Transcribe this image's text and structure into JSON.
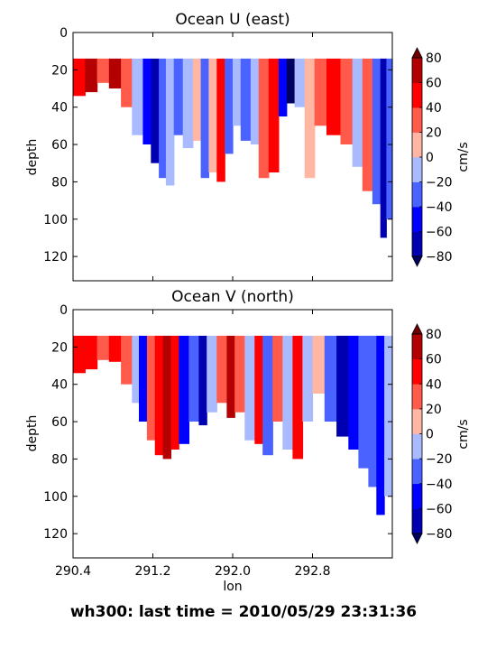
{
  "figure": {
    "suptitle": "wh300: last time = 2010/05/29 23:31:36"
  },
  "colors": {
    "levels": [
      -80,
      -60,
      -40,
      -20,
      0,
      20,
      40,
      60,
      80
    ],
    "band_colors": [
      "#0000b0",
      "#0000ff",
      "#4a62ff",
      "#a9baff",
      "#ffb6a3",
      "#ff5a4a",
      "#ff0000",
      "#b30000"
    ],
    "under": "#000060",
    "over": "#700000"
  },
  "chart_data": [
    {
      "type": "heatmap",
      "title": "Ocean U (east)",
      "xlabel": "",
      "ylabel": "depth",
      "colorbar_label": "cm/s",
      "colorbar_ticks": [
        "80",
        "60",
        "40",
        "20",
        "0",
        "−20",
        "−40",
        "−60",
        "−80"
      ],
      "xlim": [
        290.4,
        293.6
      ],
      "ylim": [
        133,
        0
      ],
      "yticks": [
        "0",
        "20",
        "40",
        "60",
        "80",
        "100",
        "120"
      ],
      "xticks": [],
      "depth_top": 14,
      "columns": [
        {
          "x0": 290.4,
          "x1": 290.52,
          "v": 40,
          "bottom": 34
        },
        {
          "x0": 290.52,
          "x1": 290.64,
          "v": 70,
          "bottom": 32
        },
        {
          "x0": 290.64,
          "x1": 290.76,
          "v": 35,
          "bottom": 27
        },
        {
          "x0": 290.76,
          "x1": 290.88,
          "v": 75,
          "bottom": 30
        },
        {
          "x0": 290.88,
          "x1": 290.99,
          "v": 30,
          "bottom": 40
        },
        {
          "x0": 290.99,
          "x1": 291.1,
          "v": -15,
          "bottom": 55
        },
        {
          "x0": 291.1,
          "x1": 291.18,
          "v": -50,
          "bottom": 60
        },
        {
          "x0": 291.18,
          "x1": 291.26,
          "v": -75,
          "bottom": 70
        },
        {
          "x0": 291.26,
          "x1": 291.33,
          "v": -35,
          "bottom": 78
        },
        {
          "x0": 291.33,
          "x1": 291.41,
          "v": -10,
          "bottom": 82
        },
        {
          "x0": 291.41,
          "x1": 291.5,
          "v": -25,
          "bottom": 55
        },
        {
          "x0": 291.5,
          "x1": 291.6,
          "v": -12,
          "bottom": 62
        },
        {
          "x0": 291.6,
          "x1": 291.68,
          "v": 15,
          "bottom": 58
        },
        {
          "x0": 291.68,
          "x1": 291.76,
          "v": -25,
          "bottom": 78
        },
        {
          "x0": 291.76,
          "x1": 291.84,
          "v": 12,
          "bottom": 75
        },
        {
          "x0": 291.84,
          "x1": 291.92,
          "v": 45,
          "bottom": 80
        },
        {
          "x0": 291.92,
          "x1": 292.0,
          "v": -30,
          "bottom": 65
        },
        {
          "x0": 292.0,
          "x1": 292.08,
          "v": -15,
          "bottom": 50
        },
        {
          "x0": 292.08,
          "x1": 292.18,
          "v": -40,
          "bottom": 58
        },
        {
          "x0": 292.18,
          "x1": 292.26,
          "v": -10,
          "bottom": 60
        },
        {
          "x0": 292.26,
          "x1": 292.36,
          "v": 25,
          "bottom": 78
        },
        {
          "x0": 292.36,
          "x1": 292.46,
          "v": 40,
          "bottom": 75
        },
        {
          "x0": 292.46,
          "x1": 292.54,
          "v": -55,
          "bottom": 45
        },
        {
          "x0": 292.54,
          "x1": 292.62,
          "v": -85,
          "bottom": 38
        },
        {
          "x0": 292.62,
          "x1": 292.72,
          "v": -20,
          "bottom": 40
        },
        {
          "x0": 292.72,
          "x1": 292.82,
          "v": 15,
          "bottom": 78
        },
        {
          "x0": 292.82,
          "x1": 292.94,
          "v": 25,
          "bottom": 50
        },
        {
          "x0": 292.94,
          "x1": 293.08,
          "v": 55,
          "bottom": 55
        },
        {
          "x0": 293.08,
          "x1": 293.2,
          "v": 30,
          "bottom": 60
        },
        {
          "x0": 293.2,
          "x1": 293.3,
          "v": -20,
          "bottom": 72
        },
        {
          "x0": 293.3,
          "x1": 293.4,
          "v": 25,
          "bottom": 85
        },
        {
          "x0": 293.4,
          "x1": 293.48,
          "v": -40,
          "bottom": 92
        },
        {
          "x0": 293.48,
          "x1": 293.54,
          "v": -70,
          "bottom": 110
        },
        {
          "x0": 293.54,
          "x1": 293.6,
          "v": -30,
          "bottom": 100
        }
      ]
    },
    {
      "type": "heatmap",
      "title": "Ocean V (north)",
      "xlabel": "lon",
      "ylabel": "depth",
      "colorbar_label": "cm/s",
      "colorbar_ticks": [
        "80",
        "60",
        "40",
        "20",
        "0",
        "−20",
        "−40",
        "−60",
        "−80"
      ],
      "xlim": [
        290.4,
        293.6
      ],
      "ylim": [
        133,
        0
      ],
      "yticks": [
        "0",
        "20",
        "40",
        "60",
        "80",
        "100",
        "120"
      ],
      "xticks": [
        "290.4",
        "291.2",
        "292.0",
        "292.8"
      ],
      "xtick_values": [
        290.4,
        291.2,
        292.0,
        292.8
      ],
      "depth_top": 14,
      "columns": [
        {
          "x0": 290.4,
          "x1": 290.52,
          "v": 55,
          "bottom": 34
        },
        {
          "x0": 290.52,
          "x1": 290.64,
          "v": 40,
          "bottom": 32
        },
        {
          "x0": 290.64,
          "x1": 290.76,
          "v": 35,
          "bottom": 27
        },
        {
          "x0": 290.76,
          "x1": 290.88,
          "v": 50,
          "bottom": 28
        },
        {
          "x0": 290.88,
          "x1": 290.99,
          "v": 25,
          "bottom": 40
        },
        {
          "x0": 290.99,
          "x1": 291.06,
          "v": -15,
          "bottom": 50
        },
        {
          "x0": 291.06,
          "x1": 291.14,
          "v": -60,
          "bottom": 60
        },
        {
          "x0": 291.14,
          "x1": 291.22,
          "v": 35,
          "bottom": 70
        },
        {
          "x0": 291.22,
          "x1": 291.3,
          "v": 55,
          "bottom": 78
        },
        {
          "x0": 291.3,
          "x1": 291.38,
          "v": 70,
          "bottom": 80
        },
        {
          "x0": 291.38,
          "x1": 291.46,
          "v": 45,
          "bottom": 75
        },
        {
          "x0": 291.46,
          "x1": 291.56,
          "v": -45,
          "bottom": 72
        },
        {
          "x0": 291.56,
          "x1": 291.66,
          "v": -30,
          "bottom": 60
        },
        {
          "x0": 291.66,
          "x1": 291.74,
          "v": -70,
          "bottom": 62
        },
        {
          "x0": 291.74,
          "x1": 291.84,
          "v": -15,
          "bottom": 55
        },
        {
          "x0": 291.84,
          "x1": 291.94,
          "v": 25,
          "bottom": 50
        },
        {
          "x0": 291.94,
          "x1": 292.02,
          "v": 65,
          "bottom": 58
        },
        {
          "x0": 292.02,
          "x1": 292.12,
          "v": 30,
          "bottom": 55
        },
        {
          "x0": 292.12,
          "x1": 292.22,
          "v": -20,
          "bottom": 70
        },
        {
          "x0": 292.22,
          "x1": 292.3,
          "v": 40,
          "bottom": 72
        },
        {
          "x0": 292.3,
          "x1": 292.4,
          "v": -25,
          "bottom": 78
        },
        {
          "x0": 292.4,
          "x1": 292.5,
          "v": 35,
          "bottom": 60
        },
        {
          "x0": 292.5,
          "x1": 292.6,
          "v": -15,
          "bottom": 75
        },
        {
          "x0": 292.6,
          "x1": 292.7,
          "v": 45,
          "bottom": 80
        },
        {
          "x0": 292.7,
          "x1": 292.8,
          "v": -20,
          "bottom": 60
        },
        {
          "x0": 292.8,
          "x1": 292.92,
          "v": 15,
          "bottom": 45
        },
        {
          "x0": 292.92,
          "x1": 293.04,
          "v": -40,
          "bottom": 60
        },
        {
          "x0": 293.04,
          "x1": 293.16,
          "v": -75,
          "bottom": 68
        },
        {
          "x0": 293.16,
          "x1": 293.26,
          "v": -60,
          "bottom": 75
        },
        {
          "x0": 293.26,
          "x1": 293.36,
          "v": -35,
          "bottom": 85
        },
        {
          "x0": 293.36,
          "x1": 293.44,
          "v": -25,
          "bottom": 95
        },
        {
          "x0": 293.44,
          "x1": 293.52,
          "v": -55,
          "bottom": 110
        },
        {
          "x0": 293.52,
          "x1": 293.6,
          "v": -20,
          "bottom": 100
        }
      ]
    }
  ]
}
